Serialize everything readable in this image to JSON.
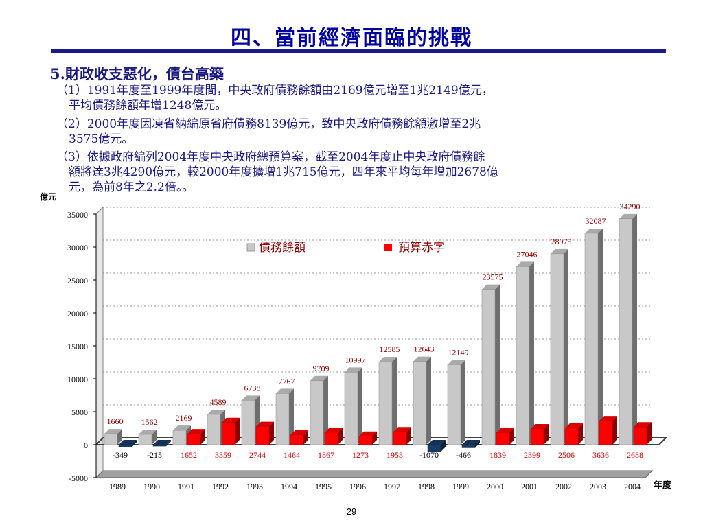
{
  "slide": {
    "title": "四、當前經濟面臨的挑戰",
    "heading": "5.財政收支惡化，債台高築",
    "paragraphs": [
      {
        "line1": "（1）1991年度至1999年度間，中央政府債務餘額由2169億元增至1兆2149億元，",
        "line2": "平均債務餘額年增1248億元。"
      },
      {
        "line1": "（2）2000年度因凍省納編原省府債務8139億元，致中央政府債務餘額激增至2兆",
        "line2": "3575億元。"
      },
      {
        "line1": "（3）依據政府編列2004年度中央政府總預算案，截至2004年度止中央政府債務餘",
        "line2": "額將達3兆4290億元，較2000年度擴增1兆715億元，四年來平均每年增加2678億",
        "line3": "元，為前8年之2.2倍。。"
      }
    ],
    "page_number": "29"
  },
  "chart_data": {
    "type": "bar",
    "ylabel": "億元",
    "xlabel": "年度",
    "ylim": [
      -5000,
      35000
    ],
    "yticks": [
      35000,
      30000,
      25000,
      20000,
      15000,
      10000,
      5000,
      0,
      -5000
    ],
    "categories": [
      "1989",
      "1990",
      "1991",
      "1992",
      "1993",
      "1994",
      "1995",
      "1996",
      "1997",
      "1998",
      "1999",
      "2000",
      "2001",
      "2002",
      "2003",
      "2004"
    ],
    "series": [
      {
        "name": "債務餘額",
        "color": "#c8c8c8",
        "values": [
          1660,
          1562,
          2169,
          4589,
          6738,
          7767,
          9709,
          10997,
          12585,
          12643,
          12149,
          23575,
          27046,
          28975,
          32087,
          34290
        ]
      },
      {
        "name": "預算赤字",
        "color": "#ff0000",
        "values": [
          -349,
          -215,
          1652,
          3359,
          2744,
          1464,
          1867,
          1273,
          1953,
          -1070,
          -466,
          1839,
          2399,
          2506,
          3636,
          2688
        ]
      }
    ],
    "legend_placement": "top-center",
    "grid": true
  }
}
